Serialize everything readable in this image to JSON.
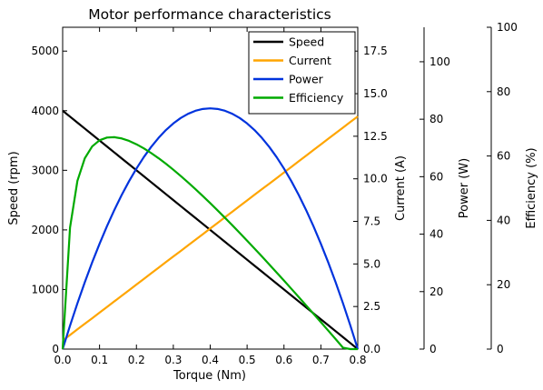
{
  "chart_data": {
    "type": "line",
    "title": "Motor performance characteristics",
    "x": [
      0.0,
      0.02,
      0.04,
      0.06,
      0.08,
      0.1,
      0.12,
      0.14,
      0.16,
      0.18,
      0.2,
      0.22,
      0.24,
      0.26,
      0.28,
      0.3,
      0.32,
      0.34,
      0.36,
      0.38,
      0.4,
      0.42,
      0.44,
      0.46,
      0.48,
      0.5,
      0.52,
      0.54,
      0.56,
      0.58,
      0.6,
      0.62,
      0.64,
      0.66,
      0.68,
      0.7,
      0.72,
      0.74,
      0.76,
      0.78,
      0.8
    ],
    "xlabel": "Torque (Nm)",
    "xlim": [
      0.0,
      0.8
    ],
    "xticks": [
      "0.0",
      "0.1",
      "0.2",
      "0.3",
      "0.4",
      "0.5",
      "0.6",
      "0.7",
      "0.8"
    ],
    "axes": [
      {
        "id": "speed",
        "label": "Speed (rpm)",
        "side": "left",
        "ylim": [
          0,
          5400
        ],
        "ticks": [
          "0",
          "1000",
          "2000",
          "3000",
          "4000",
          "5000"
        ]
      },
      {
        "id": "current",
        "label": "Current (A)",
        "side": "right",
        "ylim": [
          0,
          18.9
        ],
        "ticks": [
          "0.0",
          "2.5",
          "5.0",
          "7.5",
          "10.0",
          "12.5",
          "15.0",
          "17.5"
        ]
      },
      {
        "id": "power",
        "label": "Power (W)",
        "side": "right-offset-1",
        "ylim": [
          0,
          112
        ],
        "ticks": [
          "0",
          "20",
          "40",
          "60",
          "80",
          "100"
        ]
      },
      {
        "id": "efficiency",
        "label": "Efficiency (%)",
        "side": "right-offset-2",
        "ylim": [
          0,
          100
        ],
        "ticks": [
          "0",
          "20",
          "40",
          "60",
          "80",
          "100"
        ]
      }
    ],
    "series": [
      {
        "name": "Speed",
        "axis": "speed",
        "color": "#000000",
        "values": [
          4000,
          3900,
          3800,
          3700,
          3600,
          3500,
          3400,
          3300,
          3200,
          3100,
          3000,
          2900,
          2800,
          2700,
          2600,
          2500,
          2400,
          2300,
          2200,
          2100,
          2000,
          1900,
          1800,
          1700,
          1600,
          1500,
          1400,
          1300,
          1200,
          1100,
          1000,
          900,
          800,
          700,
          600,
          500,
          400,
          300,
          200,
          100,
          0
        ]
      },
      {
        "name": "Current",
        "axis": "current",
        "color": "#ffa500",
        "values": [
          0.5,
          0.83,
          1.16,
          1.49,
          1.81,
          2.14,
          2.47,
          2.8,
          3.13,
          3.46,
          3.79,
          4.12,
          4.45,
          4.78,
          5.11,
          5.44,
          5.76,
          6.09,
          6.42,
          6.75,
          7.08,
          7.41,
          7.74,
          8.07,
          8.4,
          8.73,
          9.06,
          9.39,
          9.71,
          10.04,
          10.37,
          10.7,
          11.03,
          11.36,
          11.69,
          12.02,
          12.35,
          12.68,
          13.01,
          13.34,
          13.66
        ]
      },
      {
        "name": "Power",
        "axis": "power",
        "color": "#0033dd",
        "values": [
          0.0,
          8.17,
          15.92,
          23.25,
          30.16,
          36.65,
          42.73,
          48.38,
          53.62,
          58.43,
          62.83,
          66.81,
          70.37,
          73.51,
          76.24,
          78.54,
          80.42,
          81.89,
          82.94,
          83.57,
          83.78,
          83.57,
          82.94,
          81.89,
          80.42,
          78.54,
          76.24,
          73.51,
          70.37,
          66.81,
          62.83,
          58.43,
          53.62,
          48.38,
          42.73,
          36.65,
          30.16,
          23.25,
          15.92,
          8.17,
          0.0
        ]
      },
      {
        "name": "Efficiency",
        "axis": "efficiency",
        "color": "#00aa00",
        "values": [
          0.0,
          37.77,
          52.28,
          59.29,
          62.97,
          64.89,
          65.73,
          65.85,
          65.46,
          64.7,
          63.64,
          62.37,
          60.91,
          59.31,
          57.58,
          55.74,
          53.8,
          51.79,
          49.7,
          47.55,
          45.35,
          43.1,
          40.8,
          38.47,
          36.1,
          33.69,
          31.26,
          28.8,
          26.32,
          23.81,
          21.28,
          18.73,
          16.16,
          13.58,
          10.98,
          8.37,
          5.74,
          3.11,
          0.42,
          0.0,
          0.0
        ]
      }
    ],
    "legend": {
      "position": "top-right"
    },
    "grid": false
  }
}
